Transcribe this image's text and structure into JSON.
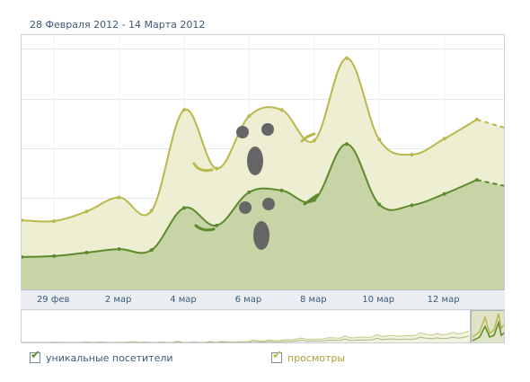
{
  "header": {
    "date_range": "28 Февраля 2012 - 14 Марта 2012"
  },
  "chart_data": {
    "type": "area",
    "x": [
      "28 фев",
      "29 фев",
      "1 мар",
      "2 мар",
      "3 мар",
      "4 мар",
      "5 мар",
      "6 мар",
      "7 мар",
      "8 мар",
      "9 мар",
      "10 мар",
      "11 мар",
      "12 мар",
      "13 мар",
      "14 мар"
    ],
    "tick_labels": [
      "29 фев",
      "2 мар",
      "4 мар",
      "6 мар",
      "8 мар",
      "10 мар",
      "12 мар"
    ],
    "y_ticks": 5,
    "grid": true,
    "series": [
      {
        "name": "просмотры",
        "color": "#b9b84a",
        "fill": "#eeeed3",
        "values": [
          77,
          76,
          87,
          103,
          88,
          203,
          136,
          196,
          203,
          168,
          262,
          169,
          152,
          170,
          192,
          181
        ]
      },
      {
        "name": "уникальные посетители",
        "color": "#5c8a2c",
        "fill": "#c7d5a6",
        "values": [
          35,
          36,
          40,
          44,
          43,
          91,
          71,
          109,
          111,
          100,
          164,
          95,
          94,
          107,
          123,
          115
        ]
      }
    ]
  },
  "legend": {
    "items": [
      {
        "label": "уникальные посетители",
        "color": "#5c8a2c"
      },
      {
        "label": "просмотры",
        "color": "#b9b84a"
      }
    ]
  }
}
